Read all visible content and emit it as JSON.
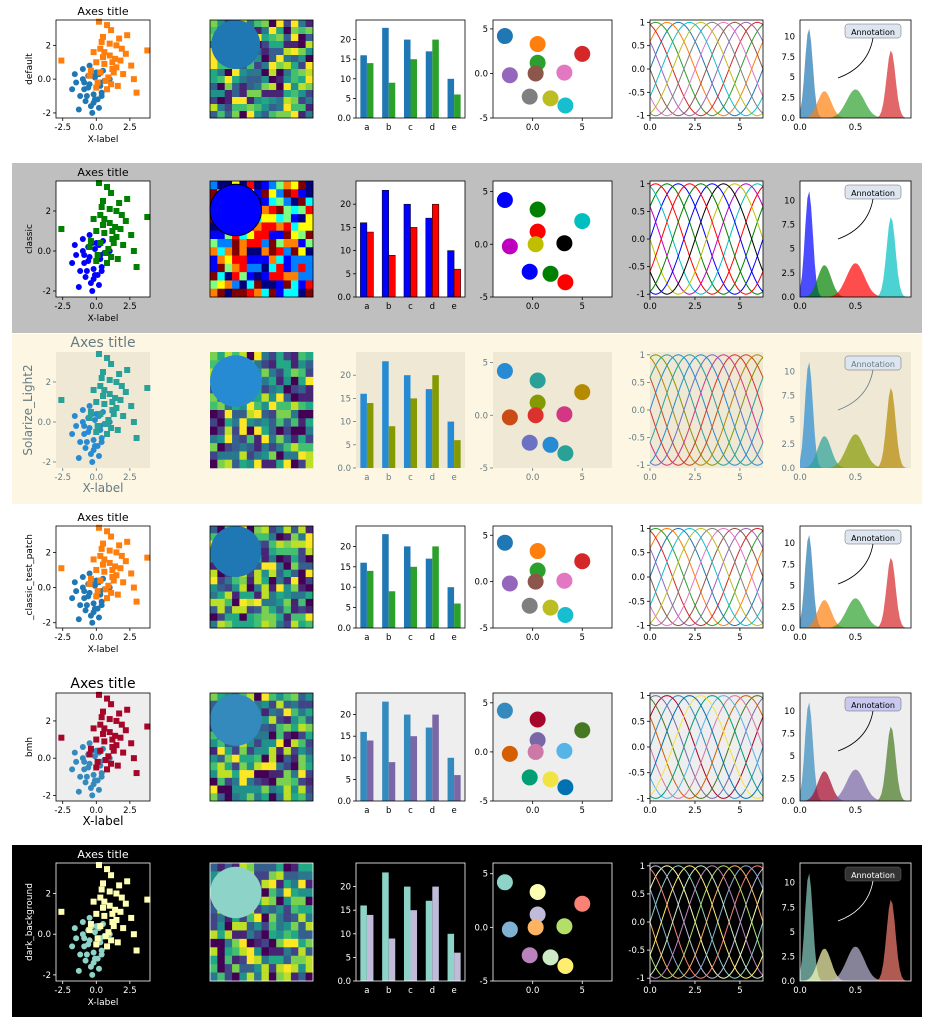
{
  "figure": {
    "title": ""
  },
  "common": {
    "axes_title": "Axes title",
    "xlabel": "X-label",
    "annotation": "Annotation",
    "bar_categories": [
      "a",
      "b",
      "c",
      "d",
      "e"
    ]
  },
  "styles": [
    {
      "name": "default",
      "row_background": "#ffffff",
      "axes_background": "#ffffff",
      "text_color": "#000000",
      "colors": [
        "#1f77b4",
        "#ff7f0e",
        "#2ca02c",
        "#d62728",
        "#9467bd",
        "#8c564b",
        "#e377c2",
        "#7f7f7f",
        "#bcbd22",
        "#17becf"
      ]
    },
    {
      "name": "classic",
      "row_background": "#bfbfbf",
      "axes_background": "#ffffff",
      "text_color": "#000000",
      "colors": [
        "#0000ff",
        "#008000",
        "#ff0000",
        "#00bfbf",
        "#bf00bf",
        "#bfbf00",
        "#000000"
      ]
    },
    {
      "name": "Solarize_Light2",
      "row_background": "#fdf6e3",
      "axes_background": "#eee8d5",
      "text_color": "#657b83",
      "colors": [
        "#268bd2",
        "#2aa198",
        "#859900",
        "#b58900",
        "#cb4b16",
        "#dc322f",
        "#d33682",
        "#6c71c4"
      ]
    },
    {
      "name": "_classic_test_patch",
      "row_background": "#ffffff",
      "axes_background": "#ffffff",
      "text_color": "#000000",
      "colors": [
        "#1f77b4",
        "#ff7f0e",
        "#2ca02c",
        "#d62728",
        "#9467bd",
        "#8c564b",
        "#e377c2",
        "#7f7f7f",
        "#bcbd22",
        "#17becf"
      ]
    },
    {
      "name": "bmh",
      "row_background": "#ffffff",
      "axes_background": "#eeeeee",
      "text_color": "#000000",
      "colors": [
        "#348abd",
        "#a60628",
        "#7a68a6",
        "#467821",
        "#d55e00",
        "#cc79a7",
        "#56b4e9",
        "#009e73",
        "#f0e442",
        "#0072b2"
      ]
    },
    {
      "name": "dark_background",
      "row_background": "#000000",
      "axes_background": "#000000",
      "text_color": "#ffffff",
      "colors": [
        "#8dd3c7",
        "#feffb3",
        "#bfbbd9",
        "#fa8174",
        "#81b1d2",
        "#fdb462",
        "#b3de69",
        "#bc82bd",
        "#ccebc4",
        "#ffed6f"
      ]
    }
  ],
  "chart_data": [
    {
      "type": "scatter",
      "title": "Axes title",
      "xlabel": "X-label",
      "xlim": [
        -3,
        4
      ],
      "ylim": [
        -2.3,
        3.5
      ],
      "xticks": [
        -2.5,
        0.0,
        2.5
      ],
      "yticks": [
        -2,
        0,
        2
      ],
      "series": [
        {
          "name": "",
          "marker": "circle",
          "x": [
            -1.8,
            -1.5,
            -1.2,
            -1.0,
            -0.9,
            -0.8,
            -0.6,
            -0.5,
            -0.4,
            -0.3,
            -0.2,
            -0.1,
            0.0,
            0.1,
            0.2,
            0.3,
            0.4,
            0.5,
            -1.3,
            -0.7,
            -0.2,
            0.3,
            0.6,
            -1.0,
            -0.5,
            0.0,
            -0.6,
            0.2,
            -0.3,
            0.8,
            -1.6,
            -0.9,
            0.4,
            -0.1,
            1.0
          ],
          "y": [
            -0.6,
            -0.2,
            -1.0,
            0.0,
            -0.6,
            -1.3,
            0.2,
            -0.3,
            -1.6,
            0.4,
            -0.9,
            0.1,
            -0.5,
            -1.2,
            0.3,
            -0.2,
            -0.8,
            0.5,
            -1.8,
            -1.0,
            -1.4,
            -0.4,
            -0.1,
            0.6,
            0.8,
            0.4,
            -0.5,
            -1.7,
            -2.0,
            -0.6,
            0.3,
            -0.2,
            -1.0,
            -1.2,
            0.0
          ]
        },
        {
          "name": "",
          "marker": "square",
          "x": [
            -0.4,
            0.0,
            0.3,
            0.5,
            0.8,
            1.0,
            1.2,
            1.5,
            1.8,
            2.0,
            2.3,
            0.1,
            0.6,
            1.1,
            1.6,
            -0.2,
            0.4,
            0.9,
            1.4,
            2.6,
            3.0,
            3.8,
            -2.6,
            0.2,
            0.7,
            1.3,
            1.9,
            0.5,
            1.0,
            1.5,
            -0.5,
            0.0,
            0.8,
            1.2,
            2.2,
            2.8,
            0.3,
            1.7,
            0.6,
            1.1
          ],
          "y": [
            0.5,
            1.0,
            1.8,
            2.5,
            3.2,
            1.4,
            0.6,
            2.0,
            1.1,
            0.3,
            2.6,
            -0.2,
            0.9,
            2.9,
            -0.4,
            1.6,
            2.2,
            0.1,
            1.2,
            0.8,
            -0.8,
            1.7,
            1.1,
            3.4,
            -0.1,
            0.4,
            1.8,
            1.3,
            2.1,
            0.7,
            0.2,
            -0.5,
            -0.6,
            1.0,
            1.5,
            0.0,
            0.4,
            2.4,
            1.6,
            -0.3
          ]
        }
      ]
    },
    {
      "type": "heatmap",
      "title": "",
      "grid": [
        14,
        14
      ],
      "circle": {
        "cx": 0.25,
        "cy": 0.25,
        "r": 0.25
      }
    },
    {
      "type": "bar",
      "title": "",
      "categories": [
        "a",
        "b",
        "c",
        "d",
        "e"
      ],
      "series": [
        {
          "name": "",
          "values": [
            16,
            23,
            20,
            17,
            10
          ]
        },
        {
          "name": "",
          "values": [
            14,
            9,
            15,
            20,
            6
          ]
        }
      ],
      "ylim": [
        0,
        25
      ],
      "yticks": [
        0,
        5,
        10,
        15,
        20
      ]
    },
    {
      "type": "scatter",
      "title": "",
      "xlim": [
        -4,
        8
      ],
      "ylim": [
        -5,
        6
      ],
      "xticks": [
        0,
        5
      ],
      "yticks": [
        -5,
        0,
        5
      ],
      "points": [
        {
          "x": -2.8,
          "y": 4.2
        },
        {
          "x": 0.5,
          "y": 3.3
        },
        {
          "x": 0.5,
          "y": 1.2
        },
        {
          "x": 5.0,
          "y": 2.2
        },
        {
          "x": -2.3,
          "y": -0.2
        },
        {
          "x": 0.3,
          "y": 0.0
        },
        {
          "x": 3.2,
          "y": 0.1
        },
        {
          "x": -0.3,
          "y": -2.6
        },
        {
          "x": 1.8,
          "y": -2.8
        },
        {
          "x": 3.3,
          "y": -3.6
        }
      ]
    },
    {
      "type": "line",
      "title": "",
      "xlim": [
        0,
        6.2832
      ],
      "ylim": [
        -1.05,
        1.05
      ],
      "xticks": [
        0.0,
        2.5,
        5.0
      ],
      "yticks": [
        -1.0,
        -0.5,
        0.0,
        0.5,
        1.0
      ],
      "n_series": 10
    },
    {
      "type": "histogram",
      "title": "",
      "xlim": [
        0,
        1
      ],
      "xticks": [
        0.0,
        0.5
      ],
      "yticks": [
        0.0,
        2.5,
        5.0,
        7.5,
        10.0
      ],
      "series": [
        {
          "name": "",
          "mode": 0.08,
          "peak": 11.0,
          "width": 0.035
        },
        {
          "name": "",
          "mode": 0.22,
          "peak": 3.3,
          "width": 0.06
        },
        {
          "name": "",
          "mode": 0.5,
          "peak": 3.5,
          "width": 0.08
        },
        {
          "name": "",
          "mode": 0.82,
          "peak": 8.3,
          "width": 0.04
        }
      ],
      "annotation": {
        "text": "Annotation"
      }
    }
  ]
}
